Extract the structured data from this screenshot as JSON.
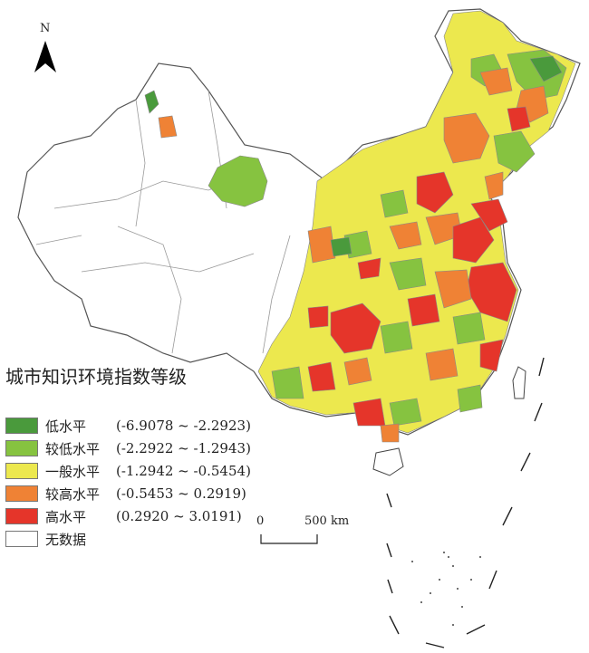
{
  "map": {
    "north_label": "N",
    "legend_title": "城市知识环境指数等级",
    "legend": [
      {
        "label": "低水平",
        "range": "(-6.9078 ~ -2.2923)",
        "color": "#4a9a3c"
      },
      {
        "label": "较低水平",
        "range": "(-2.2922 ~ -1.2943)",
        "color": "#86c340"
      },
      {
        "label": "一般水平",
        "range": "(-1.2942 ~ -0.5454)",
        "color": "#ece84e"
      },
      {
        "label": "较高水平",
        "range": "(-0.5453 ~ 0.2919)",
        "color": "#ef8235"
      },
      {
        "label": "高水平",
        "range": "(0.2920 ~ 3.0191)",
        "color": "#e5352a"
      },
      {
        "label": "无数据",
        "range": "",
        "color": "#ffffff"
      }
    ],
    "scale_bar": {
      "zero": "0",
      "end": "500 km"
    }
  }
}
